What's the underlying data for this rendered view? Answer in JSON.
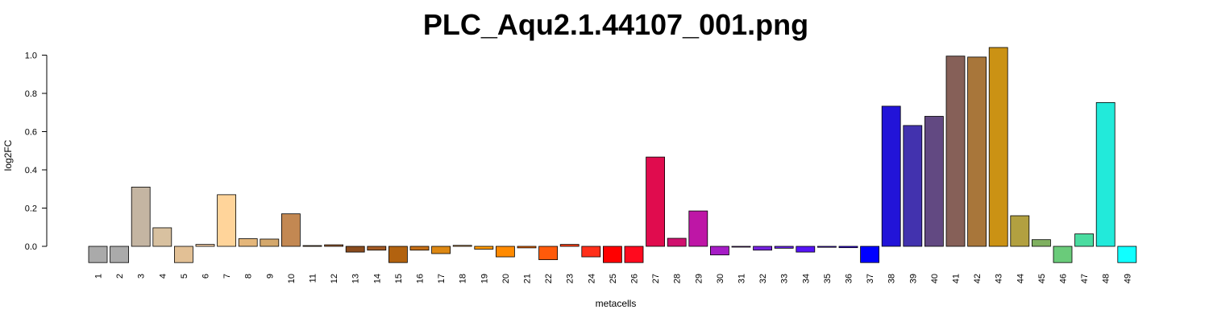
{
  "chart_data": {
    "type": "bar",
    "title": "PLC_Aqu2.1.44107_001.png",
    "xlabel": "metacells",
    "ylabel": "log2FC",
    "ylim": [
      -0.085,
      1.04
    ],
    "yticks": [
      "0.0",
      "0.2",
      "0.4",
      "0.6",
      "0.8",
      "1.0"
    ],
    "ytick_values": [
      0.0,
      0.2,
      0.4,
      0.6,
      0.8,
      1.0
    ],
    "grid": false,
    "categories": [
      "1",
      "2",
      "3",
      "4",
      "5",
      "6",
      "7",
      "8",
      "9",
      "10",
      "11",
      "12",
      "13",
      "14",
      "15",
      "16",
      "17",
      "18",
      "19",
      "20",
      "21",
      "22",
      "23",
      "24",
      "25",
      "26",
      "27",
      "28",
      "29",
      "30",
      "31",
      "32",
      "33",
      "34",
      "35",
      "36",
      "37",
      "38",
      "39",
      "40",
      "41",
      "42",
      "43",
      "44",
      "45",
      "46",
      "47",
      "48",
      "49"
    ],
    "values": [
      -0.085,
      -0.085,
      0.31,
      0.097,
      -0.085,
      0.01,
      0.27,
      0.04,
      0.038,
      0.17,
      0.004,
      0.008,
      -0.03,
      -0.02,
      -0.085,
      -0.02,
      -0.038,
      0.005,
      -0.015,
      -0.055,
      -0.008,
      -0.07,
      0.01,
      -0.055,
      -0.085,
      -0.085,
      0.467,
      0.042,
      0.185,
      -0.045,
      -0.003,
      -0.02,
      -0.01,
      -0.03,
      -0.005,
      -0.007,
      -0.085,
      0.733,
      0.632,
      0.68,
      0.995,
      0.99,
      1.04,
      0.16,
      0.035,
      -0.085,
      0.065,
      0.752,
      -0.085
    ],
    "colors": [
      "#AAAAAA",
      "#AAAAAA",
      "#C4B5A2",
      "#D8C1A0",
      "#E2C095",
      "#F0C9A0",
      "#FFD49A",
      "#E4B67A",
      "#D4A86C",
      "#C38852",
      "#AB6B2B",
      "#A76532",
      "#8A4B1D",
      "#A45A24",
      "#B2620F",
      "#C56E16",
      "#DD8813",
      "#F2A23E",
      "#FF9B00",
      "#FF8A00",
      "#FF6A00",
      "#FF5A0A",
      "#FF3F12",
      "#FF2F1A",
      "#FF0000",
      "#FF0A1E",
      "#E00C4E",
      "#D0106E",
      "#BE16A6",
      "#A61CC6",
      "#8E22D2",
      "#7622E0",
      "#6622EA",
      "#5614F6",
      "#4A0AF8",
      "#3205FC",
      "#0000FF",
      "#2214D8",
      "#4232AE",
      "#624982",
      "#866058",
      "#A8763A",
      "#CB9214",
      "#B2A040",
      "#7FB060",
      "#6ACB7A",
      "#4ADCA0",
      "#22EADA",
      "#10FFFF"
    ]
  }
}
